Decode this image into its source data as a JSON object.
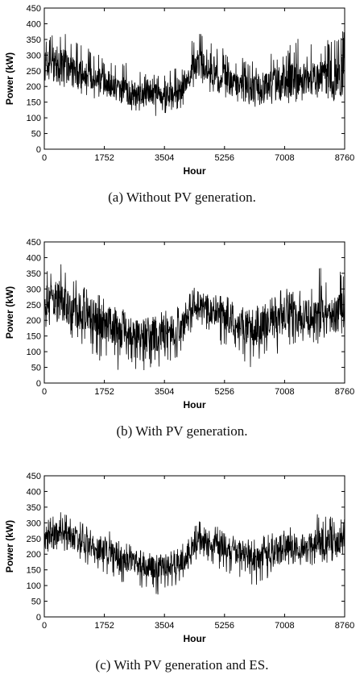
{
  "chart_data": [
    {
      "type": "line",
      "caption": "(a) Without PV generation.",
      "xlabel": "Hour",
      "ylabel": "Power (kW)",
      "xlim": [
        0,
        8760
      ],
      "ylim": [
        0,
        450
      ],
      "xticks": [
        0,
        1752,
        3504,
        5256,
        7008,
        8760
      ],
      "yticks": [
        0,
        50,
        100,
        150,
        200,
        250,
        300,
        350,
        400,
        450
      ],
      "grid": false,
      "series": [
        {
          "color": "#000000",
          "x": [
            0,
            365,
            730,
            1095,
            1460,
            1825,
            2190,
            2555,
            2920,
            3285,
            3650,
            4015,
            4380,
            4745,
            5110,
            5475,
            5840,
            6205,
            6570,
            6935,
            7300,
            7665,
            8030,
            8395,
            8760
          ],
          "mean": [
            265,
            275,
            255,
            240,
            225,
            210,
            190,
            180,
            175,
            175,
            180,
            195,
            265,
            265,
            240,
            210,
            195,
            195,
            205,
            215,
            225,
            225,
            225,
            230,
            235
          ],
          "low": [
            200,
            205,
            190,
            170,
            160,
            140,
            130,
            120,
            120,
            100,
            110,
            130,
            190,
            185,
            160,
            150,
            130,
            120,
            130,
            140,
            150,
            150,
            150,
            150,
            160
          ],
          "high": [
            360,
            425,
            380,
            340,
            320,
            300,
            290,
            270,
            250,
            240,
            260,
            280,
            385,
            380,
            330,
            300,
            290,
            280,
            300,
            340,
            360,
            330,
            350,
            350,
            400
          ]
        }
      ]
    },
    {
      "type": "line",
      "caption": "(b) With PV generation.",
      "xlabel": "Hour",
      "ylabel": "Power (kW)",
      "xlim": [
        0,
        8760
      ],
      "ylim": [
        0,
        450
      ],
      "xticks": [
        0,
        1752,
        3504,
        5256,
        7008,
        8760
      ],
      "yticks": [
        0,
        50,
        100,
        150,
        200,
        250,
        300,
        350,
        400,
        450
      ],
      "grid": false,
      "series": [
        {
          "color": "#000000",
          "x": [
            0,
            365,
            730,
            1095,
            1460,
            1825,
            2190,
            2555,
            2920,
            3285,
            3650,
            4015,
            4380,
            4745,
            5110,
            5475,
            5840,
            6205,
            6570,
            6935,
            7300,
            7665,
            8030,
            8395,
            8760
          ],
          "mean": [
            260,
            265,
            245,
            225,
            205,
            190,
            170,
            160,
            150,
            150,
            160,
            180,
            250,
            240,
            215,
            190,
            180,
            175,
            190,
            205,
            215,
            215,
            215,
            220,
            230
          ],
          "low": [
            180,
            170,
            150,
            110,
            80,
            60,
            40,
            50,
            30,
            40,
            50,
            100,
            180,
            160,
            120,
            100,
            60,
            30,
            80,
            100,
            120,
            130,
            120,
            130,
            150
          ],
          "high": [
            360,
            425,
            360,
            320,
            290,
            270,
            250,
            230,
            220,
            220,
            240,
            260,
            310,
            300,
            290,
            270,
            260,
            250,
            270,
            300,
            310,
            310,
            370,
            330,
            400
          ]
        }
      ]
    },
    {
      "type": "line",
      "caption": "(c) With PV generation and ES.",
      "xlabel": "Hour",
      "ylabel": "Power (kW)",
      "xlim": [
        0,
        8760
      ],
      "ylim": [
        0,
        450
      ],
      "xticks": [
        0,
        1752,
        3504,
        5256,
        7008,
        8760
      ],
      "yticks": [
        0,
        50,
        100,
        150,
        200,
        250,
        300,
        350,
        400,
        450
      ],
      "grid": false,
      "series": [
        {
          "color": "#000000",
          "x": [
            0,
            365,
            730,
            1095,
            1460,
            1825,
            2190,
            2555,
            2920,
            3285,
            3650,
            4015,
            4380,
            4745,
            5110,
            5475,
            5840,
            6205,
            6570,
            6935,
            7300,
            7665,
            8030,
            8395,
            8760
          ],
          "mean": [
            255,
            265,
            255,
            235,
            220,
            205,
            185,
            170,
            160,
            160,
            165,
            175,
            240,
            245,
            230,
            210,
            195,
            185,
            195,
            215,
            225,
            230,
            240,
            240,
            245
          ],
          "low": [
            200,
            205,
            190,
            160,
            150,
            130,
            110,
            100,
            90,
            60,
            90,
            110,
            180,
            180,
            150,
            130,
            120,
            90,
            110,
            130,
            160,
            160,
            170,
            170,
            190
          ],
          "high": [
            310,
            340,
            330,
            300,
            290,
            280,
            260,
            230,
            210,
            200,
            210,
            230,
            310,
            300,
            290,
            270,
            250,
            250,
            270,
            290,
            310,
            300,
            340,
            320,
            340
          ]
        }
      ]
    }
  ]
}
